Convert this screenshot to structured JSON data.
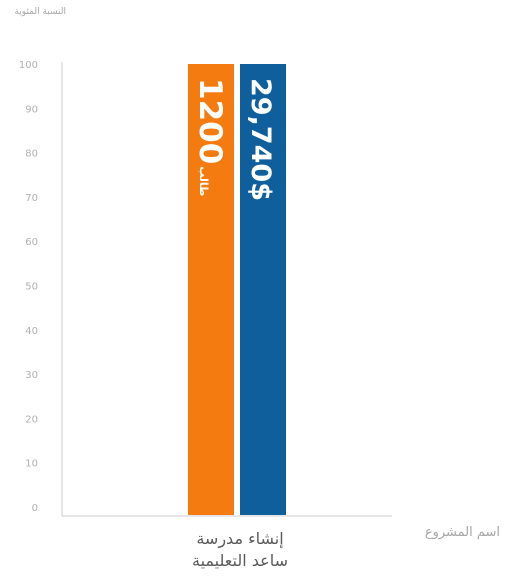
{
  "chart_data": {
    "type": "bar",
    "ylabel": "النسبة المئوية",
    "xlabel": "اسم المشروع",
    "ylim": [
      0,
      100
    ],
    "yticks": [
      0,
      10,
      20,
      30,
      40,
      50,
      60,
      70,
      80,
      90,
      100
    ],
    "categories": [
      "إنشاء مدرسة ساعد التعليمية"
    ],
    "category_lines": [
      "إنشاء مدرسة",
      "ساعد التعليمية"
    ],
    "series": [
      {
        "color": "#f47b10",
        "values": [
          100
        ],
        "value_label": "1200",
        "value_suffix": "طالب"
      },
      {
        "color": "#0f5f9c",
        "values": [
          100
        ],
        "value_label": "29,740$"
      }
    ],
    "grid": false,
    "axis_color": "#cccccc"
  }
}
